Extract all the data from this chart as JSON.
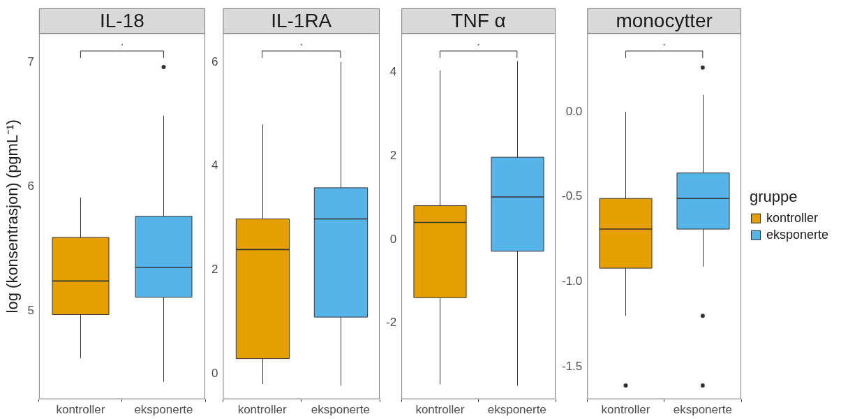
{
  "chart_data": [
    {
      "type": "box",
      "title": "IL-18",
      "ylabel": "log (konsentrasjon) (pgmL⁻¹)",
      "categories": [
        "kontroller",
        "eksponerte"
      ],
      "ylim": [
        4.29,
        7.23
      ],
      "yticks": [
        5,
        6,
        7
      ],
      "annotations": [
        "."
      ],
      "series": [
        {
          "color": "#e69f00",
          "boxes": [
            {
              "low": 4.62,
              "q1": 4.97,
              "median": 5.24,
              "q3": 5.59,
              "high": 5.91
            },
            null
          ]
        },
        {
          "color": "#56b4e9",
          "boxes": [
            null,
            {
              "low": 4.43,
              "q1": 5.11,
              "median": 5.35,
              "q3": 5.76,
              "high": 6.57,
              "outliers": [
                6.96
              ]
            }
          ]
        }
      ]
    },
    {
      "type": "box",
      "title": "IL-1RA",
      "categories": [
        "kontroller",
        "eksponerte"
      ],
      "ylim": [
        -0.49,
        6.55
      ],
      "yticks": [
        0,
        2,
        4,
        6
      ],
      "annotations": [
        "."
      ],
      "series": [
        {
          "color": "#e69f00",
          "boxes": [
            {
              "low": -0.2,
              "q1": 0.29,
              "median": 2.39,
              "q3": 2.98,
              "high": 4.8
            },
            null
          ]
        },
        {
          "color": "#56b4e9",
          "boxes": [
            null,
            {
              "low": -0.23,
              "q1": 1.09,
              "median": 2.98,
              "q3": 3.58,
              "high": 6.0
            }
          ]
        }
      ]
    },
    {
      "type": "box",
      "title": "TNF α",
      "categories": [
        "kontroller",
        "eksponerte"
      ],
      "ylim": [
        -3.82,
        4.93
      ],
      "yticks": [
        -2,
        0,
        2,
        4
      ],
      "annotations": [
        "."
      ],
      "series": [
        {
          "color": "#e69f00",
          "boxes": [
            {
              "low": -3.47,
              "q1": -1.39,
              "median": 0.41,
              "q3": 0.81,
              "high": 4.05
            },
            null
          ]
        },
        {
          "color": "#56b4e9",
          "boxes": [
            null,
            {
              "low": -3.5,
              "q1": -0.28,
              "median": 1.02,
              "q3": 1.97,
              "high": 4.27
            }
          ]
        }
      ]
    },
    {
      "type": "box",
      "title": "monocytter",
      "categories": [
        "kontroller",
        "eksponerte"
      ],
      "ylim": [
        -1.69,
        0.46
      ],
      "yticks": [
        {
          "value": -1.5,
          "label": "-1.5"
        },
        {
          "value": -1,
          "label": "-1.0"
        },
        {
          "value": -0.5,
          "label": "-0.5"
        },
        {
          "value": 0,
          "label": "0.0"
        }
      ],
      "annotations": [
        "."
      ],
      "legend": "right",
      "legend_title": "gruppe",
      "series": [
        {
          "name": "kontroller",
          "color": "#e69f00",
          "boxes": [
            {
              "low": -1.2,
              "q1": -0.92,
              "median": -0.69,
              "q3": -0.51,
              "high": 0.0,
              "outliers": [
                -1.61
              ]
            },
            null
          ]
        },
        {
          "name": "eksponerte",
          "color": "#56b4e9",
          "boxes": [
            null,
            {
              "low": -0.91,
              "q1": -0.69,
              "median": -0.51,
              "q3": -0.36,
              "high": 0.1,
              "outliers": [
                0.26,
                -1.2,
                -1.61
              ]
            }
          ]
        }
      ]
    }
  ]
}
